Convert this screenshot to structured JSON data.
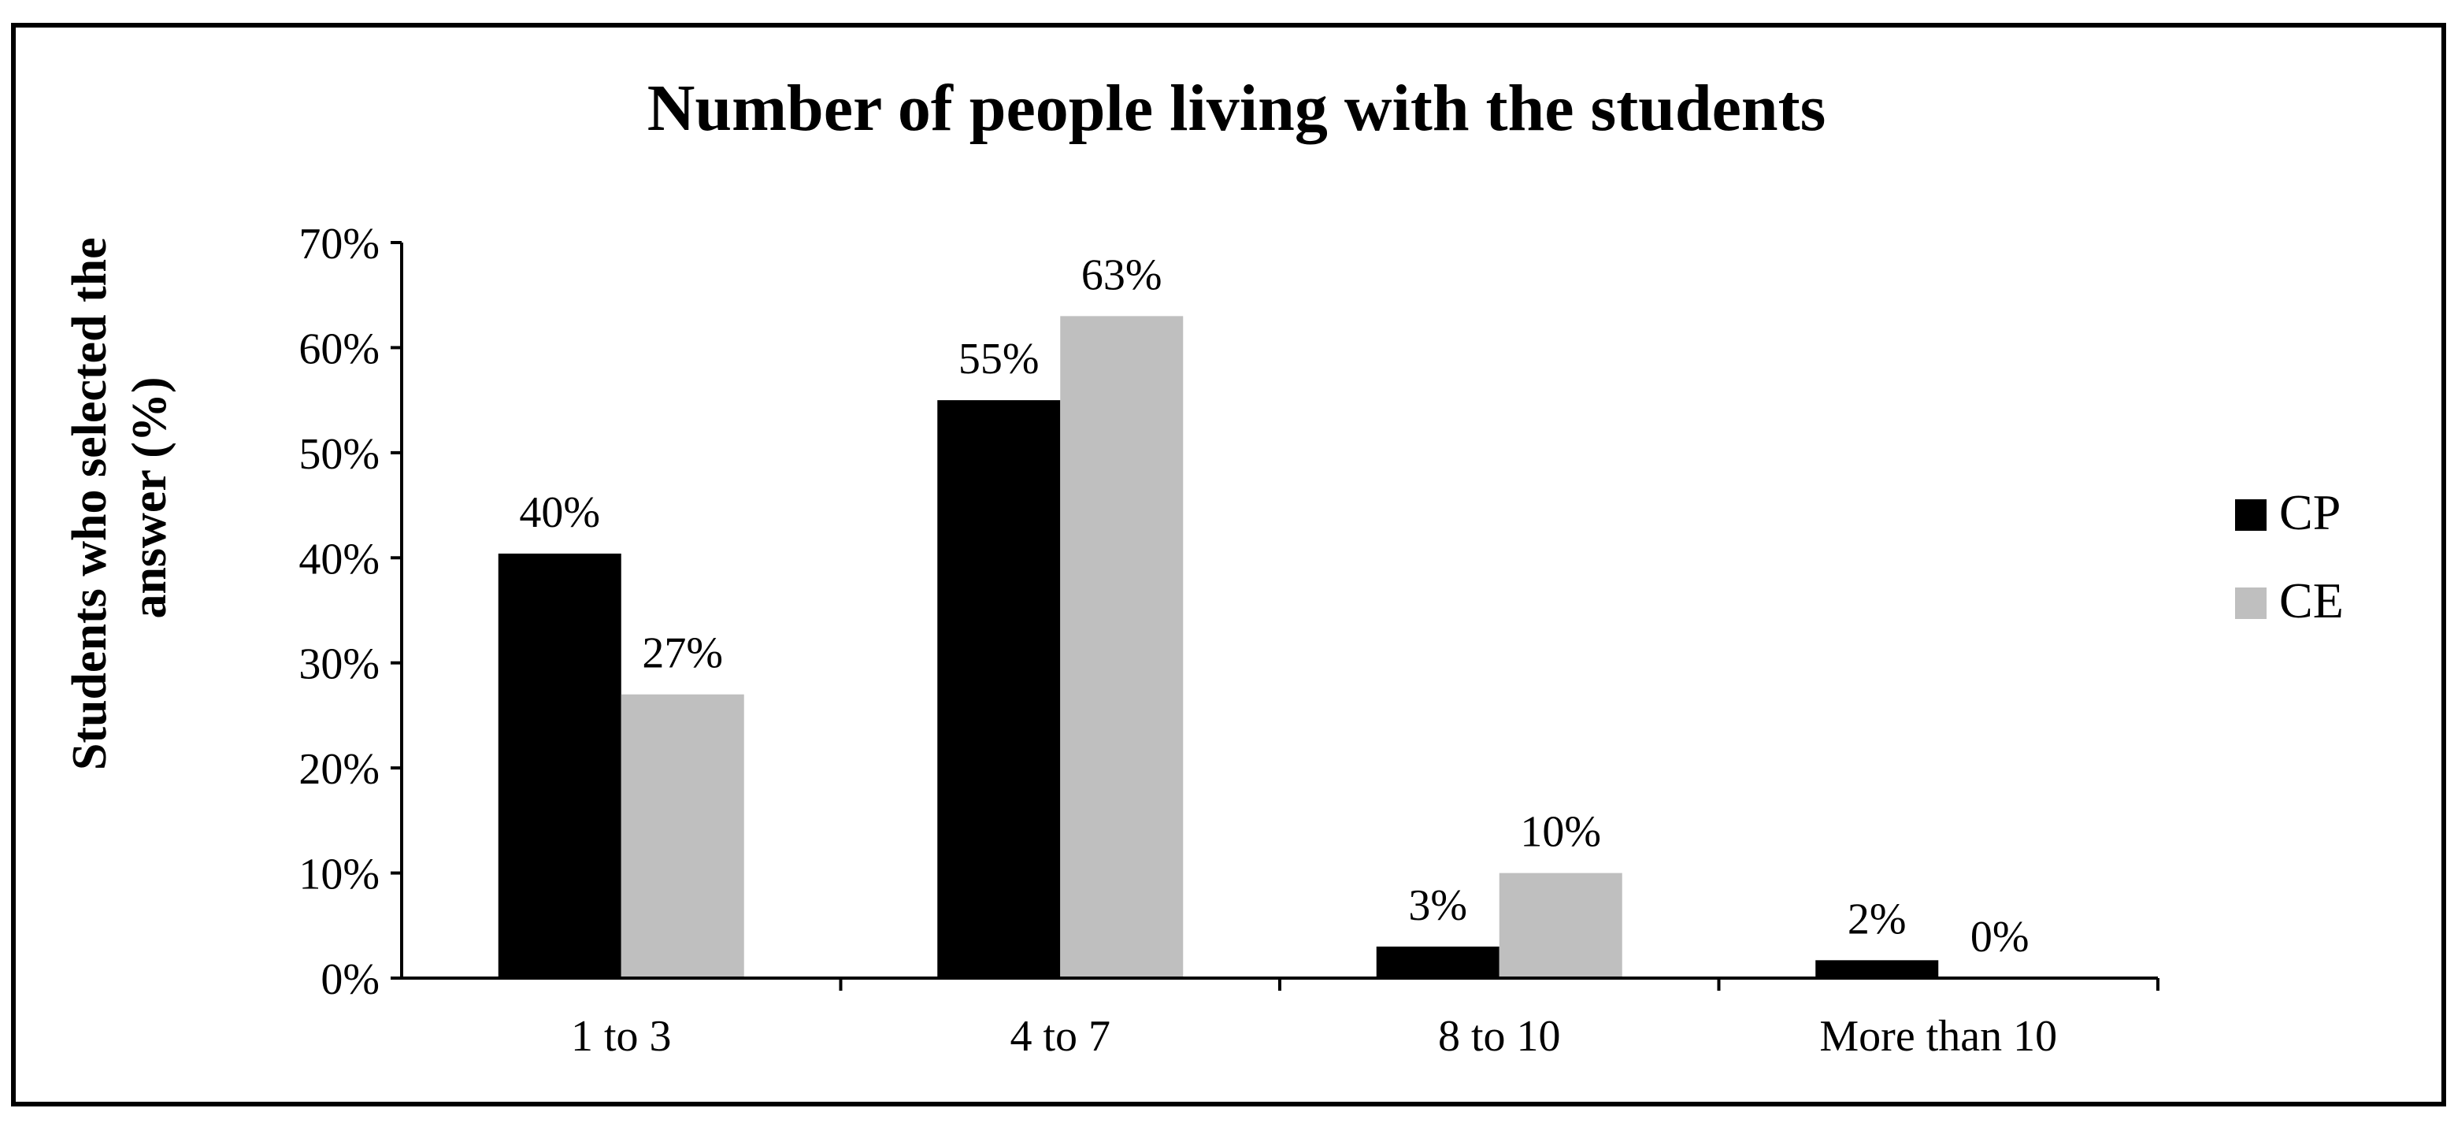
{
  "chart_data": {
    "type": "bar",
    "title": "Number of people living with the students",
    "ylabel_lines": [
      "Students who selected the",
      "answer (%)"
    ],
    "xlabel": "",
    "categories": [
      "1 to 3",
      "4 to 7",
      "8 to 10",
      "More than 10"
    ],
    "series": [
      {
        "name": "CP",
        "color": "#000000",
        "values": [
          40.4,
          55,
          3,
          1.7
        ],
        "labels": [
          "40%",
          "55%",
          "3%",
          "2%"
        ]
      },
      {
        "name": "CE",
        "color": "#bfbfbf",
        "values": [
          27,
          63,
          10,
          0
        ],
        "labels": [
          "27%",
          "63%",
          "10%",
          "0%"
        ]
      }
    ],
    "ylim": [
      0,
      70
    ],
    "yticks": [
      {
        "value": 0,
        "label": "0%"
      },
      {
        "value": 10,
        "label": "10%"
      },
      {
        "value": 20,
        "label": "20%"
      },
      {
        "value": 30,
        "label": "30%"
      },
      {
        "value": 40,
        "label": "40%"
      },
      {
        "value": 50,
        "label": "50%"
      },
      {
        "value": 60,
        "label": "60%"
      },
      {
        "value": 70,
        "label": "70%"
      }
    ],
    "grid": false,
    "legend_position": "right"
  }
}
